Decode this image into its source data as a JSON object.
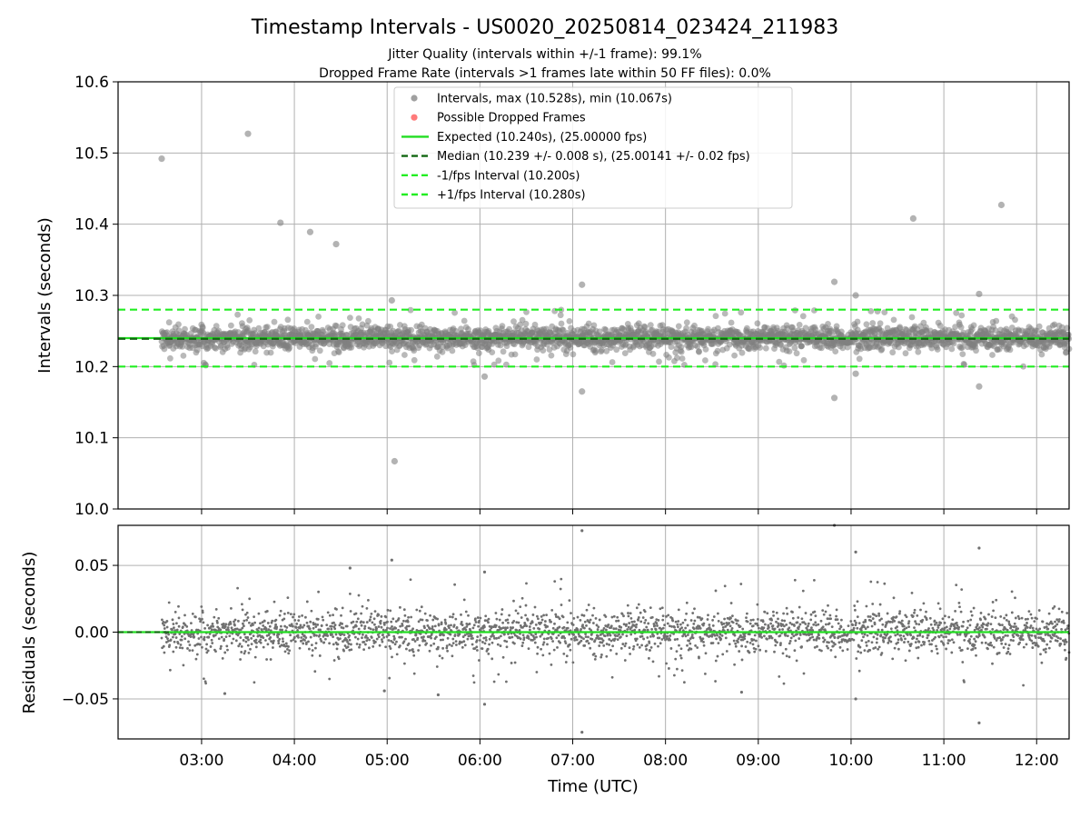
{
  "chart_data": [
    {
      "type": "scatter",
      "panel": "intervals",
      "title": "Timestamp Intervals - US0020_20250814_023424_211983",
      "subtitle_1": "Jitter Quality (intervals within +/-1 frame): 99.1%",
      "subtitle_2": "Dropped Frame Rate (intervals >1 frames late within 50 FF files): 0.0%",
      "ylabel": "Intervals (seconds)",
      "xlabel": "",
      "x_range_hours": [
        2.1,
        12.35
      ],
      "ylim": [
        10.0,
        10.6
      ],
      "y_ticks": [
        10.0,
        10.1,
        10.2,
        10.3,
        10.4,
        10.5,
        10.6
      ],
      "y_tick_labels": [
        "10.0",
        "10.1",
        "10.2",
        "10.3",
        "10.4",
        "10.5",
        "10.6"
      ],
      "grid": true,
      "legend_position": "upper-center",
      "legend": [
        {
          "label": "Intervals, max (10.528s), min (10.067s)",
          "kind": "marker",
          "color": "#808080"
        },
        {
          "label": "Possible Dropped Frames",
          "kind": "marker",
          "color": "#ff4d4d"
        },
        {
          "label": "Expected (10.240s), (25.00000 fps)",
          "kind": "solid",
          "color": "#22dd22"
        },
        {
          "label": "Median (10.239 +/- 0.008 s), (25.00141 +/- 0.02 fps)",
          "kind": "dashed",
          "color": "#116611"
        },
        {
          "label": "-1/fps Interval (10.200s)",
          "kind": "dashed",
          "color": "#22ee22"
        },
        {
          "label": "+1/fps Interval (10.280s)",
          "kind": "dashed",
          "color": "#22ee22"
        }
      ],
      "reference_lines": {
        "expected": 10.24,
        "median": 10.239,
        "lower": 10.2,
        "upper": 10.28
      },
      "data_range_hours": [
        2.57,
        12.35
      ],
      "main_band": {
        "center": 10.239,
        "spread": 0.008
      },
      "outliers": [
        {
          "x": 2.57,
          "y": 10.492
        },
        {
          "x": 3.5,
          "y": 10.527
        },
        {
          "x": 3.85,
          "y": 10.402
        },
        {
          "x": 4.17,
          "y": 10.389
        },
        {
          "x": 4.45,
          "y": 10.372
        },
        {
          "x": 5.08,
          "y": 10.067
        },
        {
          "x": 5.05,
          "y": 10.293
        },
        {
          "x": 6.05,
          "y": 10.186
        },
        {
          "x": 7.1,
          "y": 10.315
        },
        {
          "x": 7.1,
          "y": 10.165
        },
        {
          "x": 9.82,
          "y": 10.319
        },
        {
          "x": 9.82,
          "y": 10.156
        },
        {
          "x": 10.05,
          "y": 10.3
        },
        {
          "x": 10.05,
          "y": 10.19
        },
        {
          "x": 10.67,
          "y": 10.408
        },
        {
          "x": 11.38,
          "y": 10.302
        },
        {
          "x": 11.38,
          "y": 10.172
        },
        {
          "x": 11.62,
          "y": 10.427
        }
      ]
    },
    {
      "type": "scatter",
      "panel": "residuals",
      "ylabel": "Residuals (seconds)",
      "xlabel": "Time (UTC)",
      "x_range_hours": [
        2.1,
        12.35
      ],
      "ylim": [
        -0.08,
        0.08
      ],
      "y_ticks": [
        -0.05,
        0.0,
        0.05
      ],
      "y_tick_labels": [
        "−0.05",
        "0.00",
        "0.05"
      ],
      "x_ticks": [
        3,
        4,
        5,
        6,
        7,
        8,
        9,
        10,
        11,
        12
      ],
      "x_tick_labels": [
        "03:00",
        "04:00",
        "05:00",
        "06:00",
        "07:00",
        "08:00",
        "09:00",
        "10:00",
        "11:00",
        "12:00"
      ],
      "grid": true,
      "zero_line_color": "#22dd22",
      "outliers": [
        {
          "x": 7.1,
          "y": 0.076
        },
        {
          "x": 7.1,
          "y": -0.075
        },
        {
          "x": 9.82,
          "y": 0.08
        },
        {
          "x": 10.05,
          "y": 0.06
        },
        {
          "x": 10.05,
          "y": -0.05
        },
        {
          "x": 11.38,
          "y": 0.063
        },
        {
          "x": 11.38,
          "y": -0.068
        },
        {
          "x": 6.05,
          "y": -0.054
        },
        {
          "x": 6.05,
          "y": 0.045
        },
        {
          "x": 5.05,
          "y": 0.054
        },
        {
          "x": 4.6,
          "y": 0.048
        },
        {
          "x": 8.82,
          "y": -0.045
        },
        {
          "x": 5.55,
          "y": -0.047
        },
        {
          "x": 3.25,
          "y": -0.046
        },
        {
          "x": 4.97,
          "y": -0.044
        }
      ]
    }
  ]
}
